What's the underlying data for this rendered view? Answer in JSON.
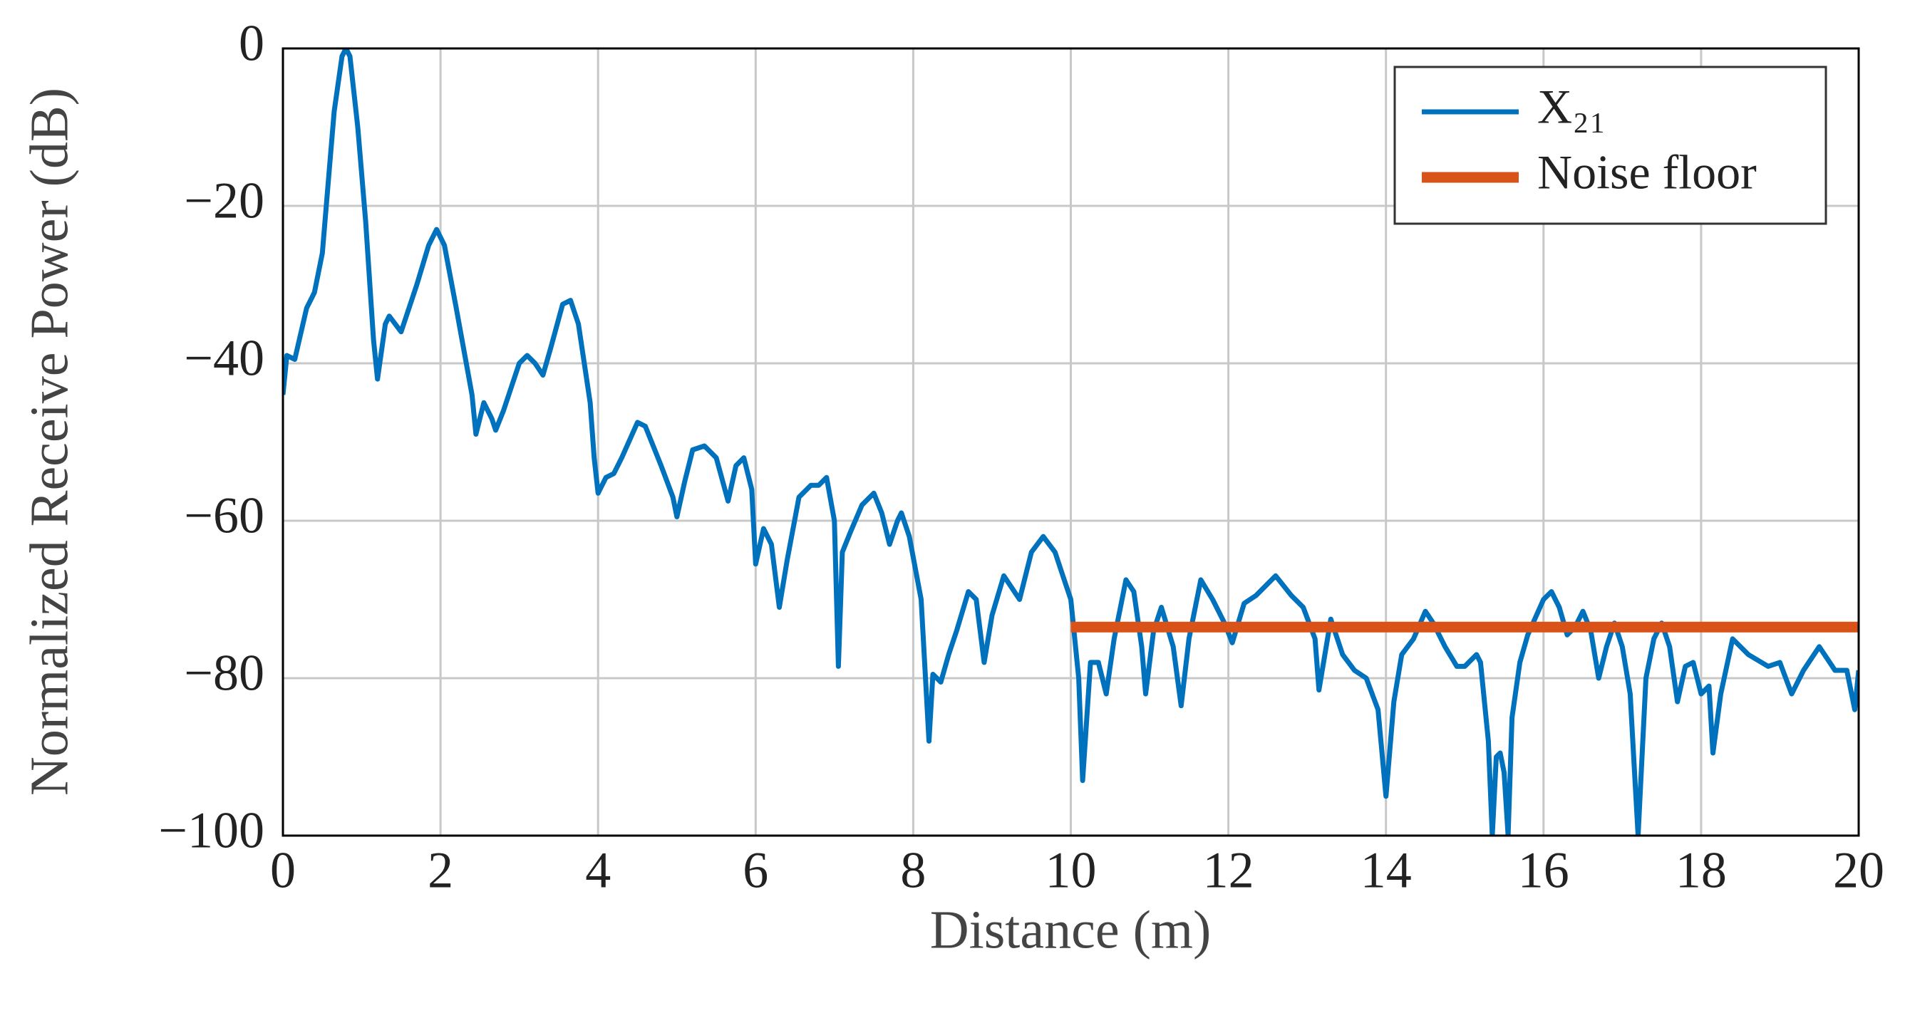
{
  "chart_data": {
    "type": "line",
    "xlabel": "Distance (m)",
    "ylabel": "Normalized Receive Power (dB)",
    "xlim": [
      0,
      20
    ],
    "ylim": [
      -100,
      0
    ],
    "xticks": [
      0,
      2,
      4,
      6,
      8,
      10,
      12,
      14,
      16,
      18,
      20
    ],
    "yticks": [
      {
        "value": -100,
        "label": "−100"
      },
      {
        "value": -80,
        "label": "−80"
      },
      {
        "value": -60,
        "label": "−60"
      },
      {
        "value": -40,
        "label": "−40"
      },
      {
        "value": -20,
        "label": "−20"
      },
      0
    ],
    "grid": true,
    "legend": "upper right",
    "series": [
      {
        "name": "X₂₁",
        "color": "#0072bd",
        "x": [
          0,
          0.05,
          0.15,
          0.3,
          0.4,
          0.5,
          0.55,
          0.65,
          0.75,
          0.8,
          0.85,
          0.95,
          1.05,
          1.15,
          1.2,
          1.3,
          1.35,
          1.5,
          1.7,
          1.85,
          1.95,
          2.05,
          2.2,
          2.4,
          2.45,
          2.55,
          2.65,
          2.7,
          2.8,
          3.0,
          3.1,
          3.2,
          3.3,
          3.4,
          3.55,
          3.65,
          3.75,
          3.9,
          3.95,
          4.0,
          4.1,
          4.2,
          4.3,
          4.5,
          4.6,
          4.8,
          4.95,
          5.0,
          5.1,
          5.2,
          5.35,
          5.5,
          5.65,
          5.75,
          5.85,
          5.95,
          6.0,
          6.1,
          6.2,
          6.3,
          6.4,
          6.55,
          6.7,
          6.8,
          6.9,
          7.0,
          7.05,
          7.1,
          7.2,
          7.35,
          7.5,
          7.6,
          7.7,
          7.8,
          7.85,
          7.95,
          8.1,
          8.2,
          8.25,
          8.35,
          8.45,
          8.55,
          8.7,
          8.8,
          8.9,
          9.0,
          9.15,
          9.25,
          9.35,
          9.5,
          9.65,
          9.8,
          9.9,
          10.0,
          10.1,
          10.15,
          10.25,
          10.35,
          10.45,
          10.55,
          10.7,
          10.8,
          10.9,
          10.95,
          11.05,
          11.15,
          11.3,
          11.4,
          11.5,
          11.65,
          11.8,
          11.95,
          12.05,
          12.2,
          12.35,
          12.6,
          12.8,
          12.95,
          13.1,
          13.15,
          13.3,
          13.45,
          13.6,
          13.75,
          13.9,
          14.0,
          14.1,
          14.2,
          14.35,
          14.5,
          14.6,
          14.75,
          14.9,
          15.0,
          15.15,
          15.2,
          15.3,
          15.35,
          15.4,
          15.45,
          15.5,
          15.55,
          15.6,
          15.7,
          15.8,
          16.0,
          16.1,
          16.2,
          16.3,
          16.4,
          16.5,
          16.6,
          16.7,
          16.8,
          16.9,
          17.0,
          17.1,
          17.15,
          17.2,
          17.3,
          17.4,
          17.5,
          17.6,
          17.7,
          17.8,
          17.9,
          18.0,
          18.1,
          18.15,
          18.25,
          18.4,
          18.6,
          18.85,
          19.0,
          19.15,
          19.3,
          19.5,
          19.7,
          19.85,
          19.95,
          20.0
        ],
        "values": [
          -44,
          -39,
          -39.5,
          -33,
          -31,
          -26,
          -20,
          -8,
          -1,
          0,
          -1,
          -10,
          -22,
          -37,
          -42,
          -35,
          -34,
          -36,
          -30,
          -25,
          -23,
          -25,
          -33,
          -44,
          -49,
          -45,
          -47,
          -48.5,
          -46,
          -40,
          -39,
          -40,
          -41.5,
          -38,
          -32.5,
          -32,
          -35,
          -45,
          -52,
          -56.5,
          -54.5,
          -54,
          -52,
          -47.5,
          -48,
          -53,
          -57,
          -59.5,
          -55,
          -51,
          -50.5,
          -52,
          -57.5,
          -53,
          -52,
          -56,
          -65.5,
          -61,
          -63,
          -71,
          -65,
          -57,
          -55.5,
          -55.5,
          -54.5,
          -60,
          -78.5,
          -64,
          -61.5,
          -58,
          -56.5,
          -59,
          -63,
          -60,
          -59,
          -62,
          -70,
          -88,
          -79.5,
          -80.5,
          -77,
          -74,
          -69,
          -70,
          -78,
          -72,
          -67,
          -68.5,
          -70,
          -64,
          -62,
          -64,
          -67,
          -70,
          -80,
          -93,
          -78,
          -78,
          -82,
          -75,
          -67.5,
          -69,
          -76,
          -82,
          -74,
          -71,
          -76,
          -83.5,
          -75,
          -67.5,
          -70,
          -73,
          -75.5,
          -70.5,
          -69.5,
          -67,
          -69.5,
          -71,
          -75,
          -81.5,
          -72.5,
          -77,
          -79,
          -80,
          -84,
          -95,
          -83,
          -77,
          -75,
          -71.5,
          -73,
          -76,
          -78.5,
          -78.5,
          -77,
          -78,
          -88,
          -100,
          -90,
          -89.5,
          -92,
          -100,
          -85,
          -78,
          -74.5,
          -70,
          -69,
          -71,
          -74.5,
          -73.5,
          -71.5,
          -74,
          -80,
          -76,
          -73,
          -76,
          -82,
          -91,
          -100,
          -80,
          -75,
          -73,
          -76,
          -83,
          -78.5,
          -78,
          -82,
          -81,
          -89.5,
          -82,
          -75,
          -77,
          -78.5,
          -78,
          -82,
          -79,
          -76,
          -79,
          -79,
          -84,
          -79
        ]
      },
      {
        "name": "Noise floor",
        "color": "#d95319",
        "x": [
          10,
          20
        ],
        "values": [
          -73.5,
          -73.5
        ]
      }
    ]
  }
}
